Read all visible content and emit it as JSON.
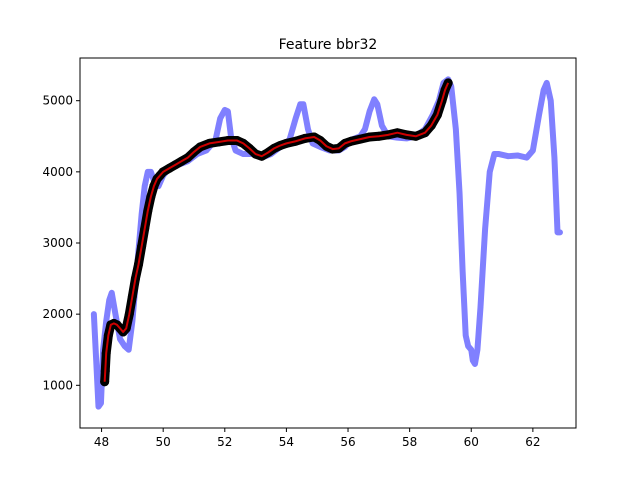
{
  "chart_data": {
    "type": "line",
    "title": "Feature bbr32",
    "xlabel": "",
    "ylabel": "",
    "xlim": [
      47.3,
      63.4
    ],
    "ylim": [
      400,
      5600
    ],
    "x_ticks": [
      48,
      50,
      52,
      54,
      56,
      58,
      60,
      62
    ],
    "y_ticks": [
      1000,
      2000,
      3000,
      4000,
      5000
    ],
    "grid": false,
    "legend": "none",
    "series": [
      {
        "style": "thick-line",
        "color": "#8080ff",
        "points": [
          [
            47.75,
            2000
          ],
          [
            47.82,
            1400
          ],
          [
            47.9,
            700
          ],
          [
            47.98,
            750
          ],
          [
            48.05,
            1500
          ],
          [
            48.15,
            1900
          ],
          [
            48.25,
            2200
          ],
          [
            48.33,
            2300
          ],
          [
            48.45,
            2000
          ],
          [
            48.6,
            1650
          ],
          [
            48.75,
            1550
          ],
          [
            48.88,
            1500
          ],
          [
            49.0,
            1900
          ],
          [
            49.1,
            2400
          ],
          [
            49.2,
            2900
          ],
          [
            49.3,
            3400
          ],
          [
            49.4,
            3800
          ],
          [
            49.5,
            4000
          ],
          [
            49.6,
            4000
          ],
          [
            49.72,
            3850
          ],
          [
            49.85,
            3800
          ],
          [
            50.0,
            3950
          ],
          [
            50.2,
            4050
          ],
          [
            50.5,
            4100
          ],
          [
            50.8,
            4150
          ],
          [
            51.1,
            4250
          ],
          [
            51.4,
            4300
          ],
          [
            51.7,
            4450
          ],
          [
            51.85,
            4750
          ],
          [
            52.0,
            4870
          ],
          [
            52.1,
            4850
          ],
          [
            52.2,
            4500
          ],
          [
            52.35,
            4300
          ],
          [
            52.6,
            4250
          ],
          [
            52.9,
            4250
          ],
          [
            53.2,
            4200
          ],
          [
            53.5,
            4250
          ],
          [
            53.8,
            4350
          ],
          [
            54.1,
            4450
          ],
          [
            54.3,
            4750
          ],
          [
            54.45,
            4950
          ],
          [
            54.55,
            4950
          ],
          [
            54.7,
            4600
          ],
          [
            54.85,
            4400
          ],
          [
            55.1,
            4350
          ],
          [
            55.4,
            4300
          ],
          [
            55.7,
            4300
          ],
          [
            55.9,
            4350
          ],
          [
            56.1,
            4450
          ],
          [
            56.4,
            4500
          ],
          [
            56.55,
            4600
          ],
          [
            56.7,
            4850
          ],
          [
            56.85,
            5020
          ],
          [
            56.95,
            4950
          ],
          [
            57.1,
            4650
          ],
          [
            57.3,
            4500
          ],
          [
            57.6,
            4480
          ],
          [
            57.9,
            4470
          ],
          [
            58.2,
            4500
          ],
          [
            58.5,
            4600
          ],
          [
            58.75,
            4800
          ],
          [
            58.95,
            5000
          ],
          [
            59.1,
            5250
          ],
          [
            59.25,
            5300
          ],
          [
            59.35,
            5200
          ],
          [
            59.5,
            4600
          ],
          [
            59.62,
            3700
          ],
          [
            59.72,
            2600
          ],
          [
            59.82,
            1700
          ],
          [
            59.9,
            1550
          ],
          [
            60.0,
            1500
          ],
          [
            60.05,
            1350
          ],
          [
            60.12,
            1300
          ],
          [
            60.2,
            1500
          ],
          [
            60.3,
            2100
          ],
          [
            60.45,
            3200
          ],
          [
            60.6,
            4000
          ],
          [
            60.75,
            4250
          ],
          [
            60.9,
            4250
          ],
          [
            61.2,
            4220
          ],
          [
            61.5,
            4230
          ],
          [
            61.8,
            4200
          ],
          [
            62.0,
            4300
          ],
          [
            62.2,
            4800
          ],
          [
            62.35,
            5150
          ],
          [
            62.45,
            5250
          ],
          [
            62.58,
            5000
          ],
          [
            62.7,
            4200
          ],
          [
            62.8,
            3150
          ],
          [
            62.88,
            3150
          ]
        ]
      },
      {
        "style": "markers",
        "color": "#000000",
        "points": [
          [
            48.1,
            1050
          ],
          [
            48.12,
            1200
          ],
          [
            48.15,
            1450
          ],
          [
            48.22,
            1700
          ],
          [
            48.3,
            1850
          ],
          [
            48.4,
            1870
          ],
          [
            48.5,
            1850
          ],
          [
            48.6,
            1800
          ],
          [
            48.7,
            1750
          ],
          [
            48.8,
            1800
          ],
          [
            48.9,
            2000
          ],
          [
            49.0,
            2250
          ],
          [
            49.1,
            2500
          ],
          [
            49.2,
            2700
          ],
          [
            49.3,
            2950
          ],
          [
            49.4,
            3200
          ],
          [
            49.5,
            3450
          ],
          [
            49.6,
            3650
          ],
          [
            49.7,
            3800
          ],
          [
            49.8,
            3900
          ],
          [
            49.9,
            3950
          ],
          [
            50.0,
            4000
          ],
          [
            50.2,
            4050
          ],
          [
            50.4,
            4100
          ],
          [
            50.6,
            4150
          ],
          [
            50.8,
            4200
          ],
          [
            51.0,
            4280
          ],
          [
            51.2,
            4350
          ],
          [
            51.5,
            4400
          ],
          [
            51.8,
            4420
          ],
          [
            52.1,
            4440
          ],
          [
            52.4,
            4440
          ],
          [
            52.6,
            4400
          ],
          [
            52.8,
            4330
          ],
          [
            53.0,
            4250
          ],
          [
            53.2,
            4220
          ],
          [
            53.4,
            4270
          ],
          [
            53.6,
            4330
          ],
          [
            53.8,
            4370
          ],
          [
            54.0,
            4400
          ],
          [
            54.3,
            4430
          ],
          [
            54.6,
            4470
          ],
          [
            54.9,
            4490
          ],
          [
            55.1,
            4440
          ],
          [
            55.3,
            4360
          ],
          [
            55.5,
            4320
          ],
          [
            55.7,
            4330
          ],
          [
            55.9,
            4400
          ],
          [
            56.1,
            4430
          ],
          [
            56.4,
            4460
          ],
          [
            56.7,
            4490
          ],
          [
            57.0,
            4500
          ],
          [
            57.3,
            4520
          ],
          [
            57.6,
            4550
          ],
          [
            57.9,
            4520
          ],
          [
            58.2,
            4500
          ],
          [
            58.5,
            4550
          ],
          [
            58.7,
            4650
          ],
          [
            58.9,
            4800
          ],
          [
            59.05,
            5000
          ],
          [
            59.15,
            5150
          ],
          [
            59.25,
            5250
          ]
        ]
      },
      {
        "style": "line",
        "color": "#cc0000",
        "points": [
          [
            48.1,
            1050
          ],
          [
            48.12,
            1200
          ],
          [
            48.15,
            1450
          ],
          [
            48.22,
            1700
          ],
          [
            48.3,
            1850
          ],
          [
            48.4,
            1870
          ],
          [
            48.5,
            1850
          ],
          [
            48.6,
            1800
          ],
          [
            48.7,
            1750
          ],
          [
            48.8,
            1800
          ],
          [
            48.9,
            2000
          ],
          [
            49.0,
            2250
          ],
          [
            49.1,
            2500
          ],
          [
            49.2,
            2700
          ],
          [
            49.3,
            2950
          ],
          [
            49.4,
            3200
          ],
          [
            49.5,
            3450
          ],
          [
            49.6,
            3650
          ],
          [
            49.7,
            3800
          ],
          [
            49.8,
            3900
          ],
          [
            49.9,
            3950
          ],
          [
            50.0,
            4000
          ],
          [
            50.2,
            4050
          ],
          [
            50.4,
            4100
          ],
          [
            50.6,
            4150
          ],
          [
            50.8,
            4200
          ],
          [
            51.0,
            4280
          ],
          [
            51.2,
            4350
          ],
          [
            51.5,
            4400
          ],
          [
            51.8,
            4420
          ],
          [
            52.1,
            4440
          ],
          [
            52.4,
            4440
          ],
          [
            52.6,
            4400
          ],
          [
            52.8,
            4330
          ],
          [
            53.0,
            4250
          ],
          [
            53.2,
            4220
          ],
          [
            53.4,
            4270
          ],
          [
            53.6,
            4330
          ],
          [
            53.8,
            4370
          ],
          [
            54.0,
            4400
          ],
          [
            54.3,
            4430
          ],
          [
            54.6,
            4470
          ],
          [
            54.9,
            4490
          ],
          [
            55.1,
            4440
          ],
          [
            55.3,
            4360
          ],
          [
            55.5,
            4320
          ],
          [
            55.7,
            4330
          ],
          [
            55.9,
            4400
          ],
          [
            56.1,
            4430
          ],
          [
            56.4,
            4460
          ],
          [
            56.7,
            4490
          ],
          [
            57.0,
            4500
          ],
          [
            57.3,
            4520
          ],
          [
            57.6,
            4550
          ],
          [
            57.9,
            4520
          ],
          [
            58.2,
            4500
          ],
          [
            58.5,
            4550
          ],
          [
            58.7,
            4650
          ],
          [
            58.9,
            4800
          ],
          [
            59.05,
            5000
          ],
          [
            59.15,
            5150
          ],
          [
            59.25,
            5250
          ]
        ]
      }
    ]
  }
}
